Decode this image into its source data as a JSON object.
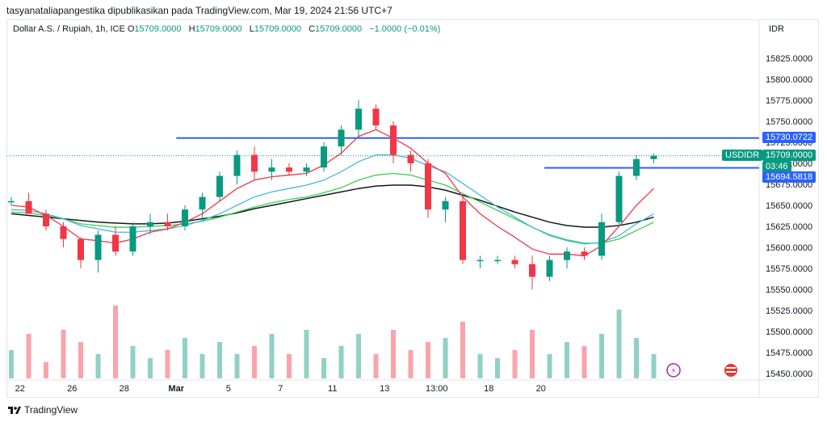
{
  "publisher_line": "tasyanataliapangestika dipublikasikan pada TradingView.com, Mar 19, 2024 21:56 UTC+7",
  "legend": {
    "symbol": "Dollar A.S. / Rupiah, 1h, ICE",
    "open_label": "O",
    "open": "15709.0000",
    "high_label": "H",
    "high": "15709.0000",
    "low_label": "L",
    "low": "15709.0000",
    "close_label": "C",
    "close": "15709.0000",
    "change": "−1.0000 (−0.01%)"
  },
  "currency": "IDR",
  "footer": {
    "brand": "TradingView"
  },
  "colors": {
    "up": "#089981",
    "down": "#f23645",
    "blue_line": "#2962ff",
    "ema_fast": "#f23645",
    "ema_mid": "#4bb5e4",
    "ema_slow": "#3ccf4e",
    "ma_long": "#131722"
  },
  "chart_data": {
    "type": "candlestick",
    "y_ticks": [
      "15825.0000",
      "15800.0000",
      "15775.0000",
      "15750.0000",
      "15725.0000",
      "15700.0000",
      "15675.0000",
      "15650.0000",
      "15625.0000",
      "15600.0000",
      "15575.0000",
      "15550.0000",
      "15525.0000",
      "15500.0000",
      "15475.0000",
      "15450.0000"
    ],
    "y_tick_values": [
      15825,
      15800,
      15775,
      15750,
      15725,
      15700,
      15675,
      15650,
      15625,
      15600,
      15575,
      15550,
      15525,
      15500,
      15475,
      15450
    ],
    "x_ticks": [
      "22",
      "26",
      "28",
      "Mar",
      "5",
      "7",
      "11",
      "13",
      "13:00",
      "18",
      "20"
    ],
    "x_tick_positions": [
      0.5,
      3.5,
      6.5,
      9.5,
      12.5,
      15.5,
      18.5,
      21.5,
      24.5,
      27.5,
      30.5
    ],
    "price_tags": [
      {
        "label": "15730.0722",
        "value": 15730.0722,
        "style": "blue"
      },
      {
        "label": "USDIDR",
        "value": 15709,
        "style": "green-name"
      },
      {
        "label": "15709.0000",
        "value": 15709,
        "style": "green"
      },
      {
        "label": "03:46",
        "value": 15709,
        "style": "green-sub"
      },
      {
        "label": "15694.5818",
        "value": 15694.5818,
        "style": "blue"
      }
    ],
    "horizontal_lines": [
      {
        "value": 15730.0722,
        "from": 9.5,
        "to": 34
      },
      {
        "value": 15694.5818,
        "from": 30.7,
        "to": 34
      }
    ],
    "last_price": 15709,
    "candles": [
      [
        15655,
        15660,
        15650,
        15655
      ],
      [
        15655,
        15665,
        15640,
        15640
      ],
      [
        15640,
        15645,
        15620,
        15625
      ],
      [
        15625,
        15630,
        15600,
        15610
      ],
      [
        15610,
        15612,
        15575,
        15585
      ],
      [
        15585,
        15620,
        15570,
        15615
      ],
      [
        15615,
        15625,
        15590,
        15595
      ],
      [
        15595,
        15630,
        15590,
        15625
      ],
      [
        15625,
        15640,
        15615,
        15630
      ],
      [
        15630,
        15640,
        15620,
        15625
      ],
      [
        15625,
        15650,
        15620,
        15645
      ],
      [
        15645,
        15665,
        15635,
        15660
      ],
      [
        15660,
        15690,
        15655,
        15685
      ],
      [
        15685,
        15715,
        15675,
        15710
      ],
      [
        15710,
        15720,
        15680,
        15690
      ],
      [
        15690,
        15705,
        15680,
        15695
      ],
      [
        15695,
        15700,
        15685,
        15690
      ],
      [
        15690,
        15700,
        15685,
        15695
      ],
      [
        15695,
        15725,
        15690,
        15720
      ],
      [
        15720,
        15745,
        15710,
        15740
      ],
      [
        15740,
        15775,
        15730,
        15765
      ],
      [
        15765,
        15770,
        15740,
        15745
      ],
      [
        15745,
        15750,
        15700,
        15710
      ],
      [
        15710,
        15715,
        15690,
        15700
      ],
      [
        15700,
        15705,
        15635,
        15645
      ],
      [
        15645,
        15660,
        15630,
        15655
      ],
      [
        15655,
        15660,
        15580,
        15585
      ],
      [
        15585,
        15590,
        15575,
        15585
      ],
      [
        15585,
        15590,
        15580,
        15585
      ],
      [
        15585,
        15590,
        15575,
        15580
      ],
      [
        15580,
        15590,
        15550,
        15565
      ],
      [
        15565,
        15590,
        15560,
        15585
      ],
      [
        15585,
        15600,
        15575,
        15595
      ],
      [
        15595,
        15600,
        15585,
        15590
      ],
      [
        15590,
        15640,
        15585,
        15630
      ],
      [
        15630,
        15690,
        15625,
        15685
      ],
      [
        15685,
        15710,
        15680,
        15705
      ],
      [
        15705,
        15712,
        15700,
        15709
      ]
    ],
    "ema_fast": [
      15650,
      15648,
      15638,
      15625,
      15610,
      15608,
      15605,
      15610,
      15618,
      15622,
      15630,
      15640,
      15655,
      15670,
      15680,
      15684,
      15686,
      15688,
      15698,
      15712,
      15732,
      15740,
      15730,
      15718,
      15700,
      15688,
      15660,
      15640,
      15625,
      15612,
      15598,
      15592,
      15592,
      15590,
      15602,
      15625,
      15650,
      15670
    ],
    "ema_mid": [
      15645,
      15644,
      15640,
      15634,
      15626,
      15622,
      15618,
      15618,
      15620,
      15622,
      15626,
      15632,
      15640,
      15650,
      15660,
      15666,
      15670,
      15674,
      15680,
      15690,
      15702,
      15710,
      15710,
      15706,
      15697,
      15690,
      15676,
      15662,
      15648,
      15636,
      15624,
      15614,
      15608,
      15604,
      15606,
      15614,
      15628,
      15640
    ],
    "ema_slow": [
      15642,
      15641,
      15638,
      15634,
      15628,
      15626,
      15624,
      15624,
      15625,
      15626,
      15628,
      15631,
      15636,
      15642,
      15648,
      15653,
      15657,
      15660,
      15665,
      15671,
      15680,
      15686,
      15688,
      15686,
      15680,
      15674,
      15664,
      15654,
      15644,
      15634,
      15624,
      15615,
      15609,
      15605,
      15605,
      15610,
      15620,
      15630
    ],
    "ma_long": [
      15640,
      15638,
      15636,
      15634,
      15632,
      15630,
      15629,
      15628,
      15628,
      15629,
      15631,
      15634,
      15637,
      15641,
      15646,
      15650,
      15654,
      15658,
      15662,
      15666,
      15670,
      15673,
      15674,
      15674,
      15672,
      15668,
      15662,
      15656,
      15649,
      15642,
      15636,
      15630,
      15626,
      15624,
      15624,
      15626,
      15630,
      15636
    ],
    "volume": [
      0.35,
      0.55,
      0.2,
      0.6,
      0.45,
      0.3,
      0.9,
      0.4,
      0.25,
      0.35,
      0.5,
      0.3,
      0.45,
      0.3,
      0.4,
      0.55,
      0.3,
      0.6,
      0.25,
      0.4,
      0.55,
      0.3,
      0.6,
      0.35,
      0.45,
      0.5,
      0.7,
      0.3,
      0.25,
      0.35,
      0.6,
      0.3,
      0.45,
      0.4,
      0.55,
      0.85,
      0.5,
      0.3
    ]
  }
}
